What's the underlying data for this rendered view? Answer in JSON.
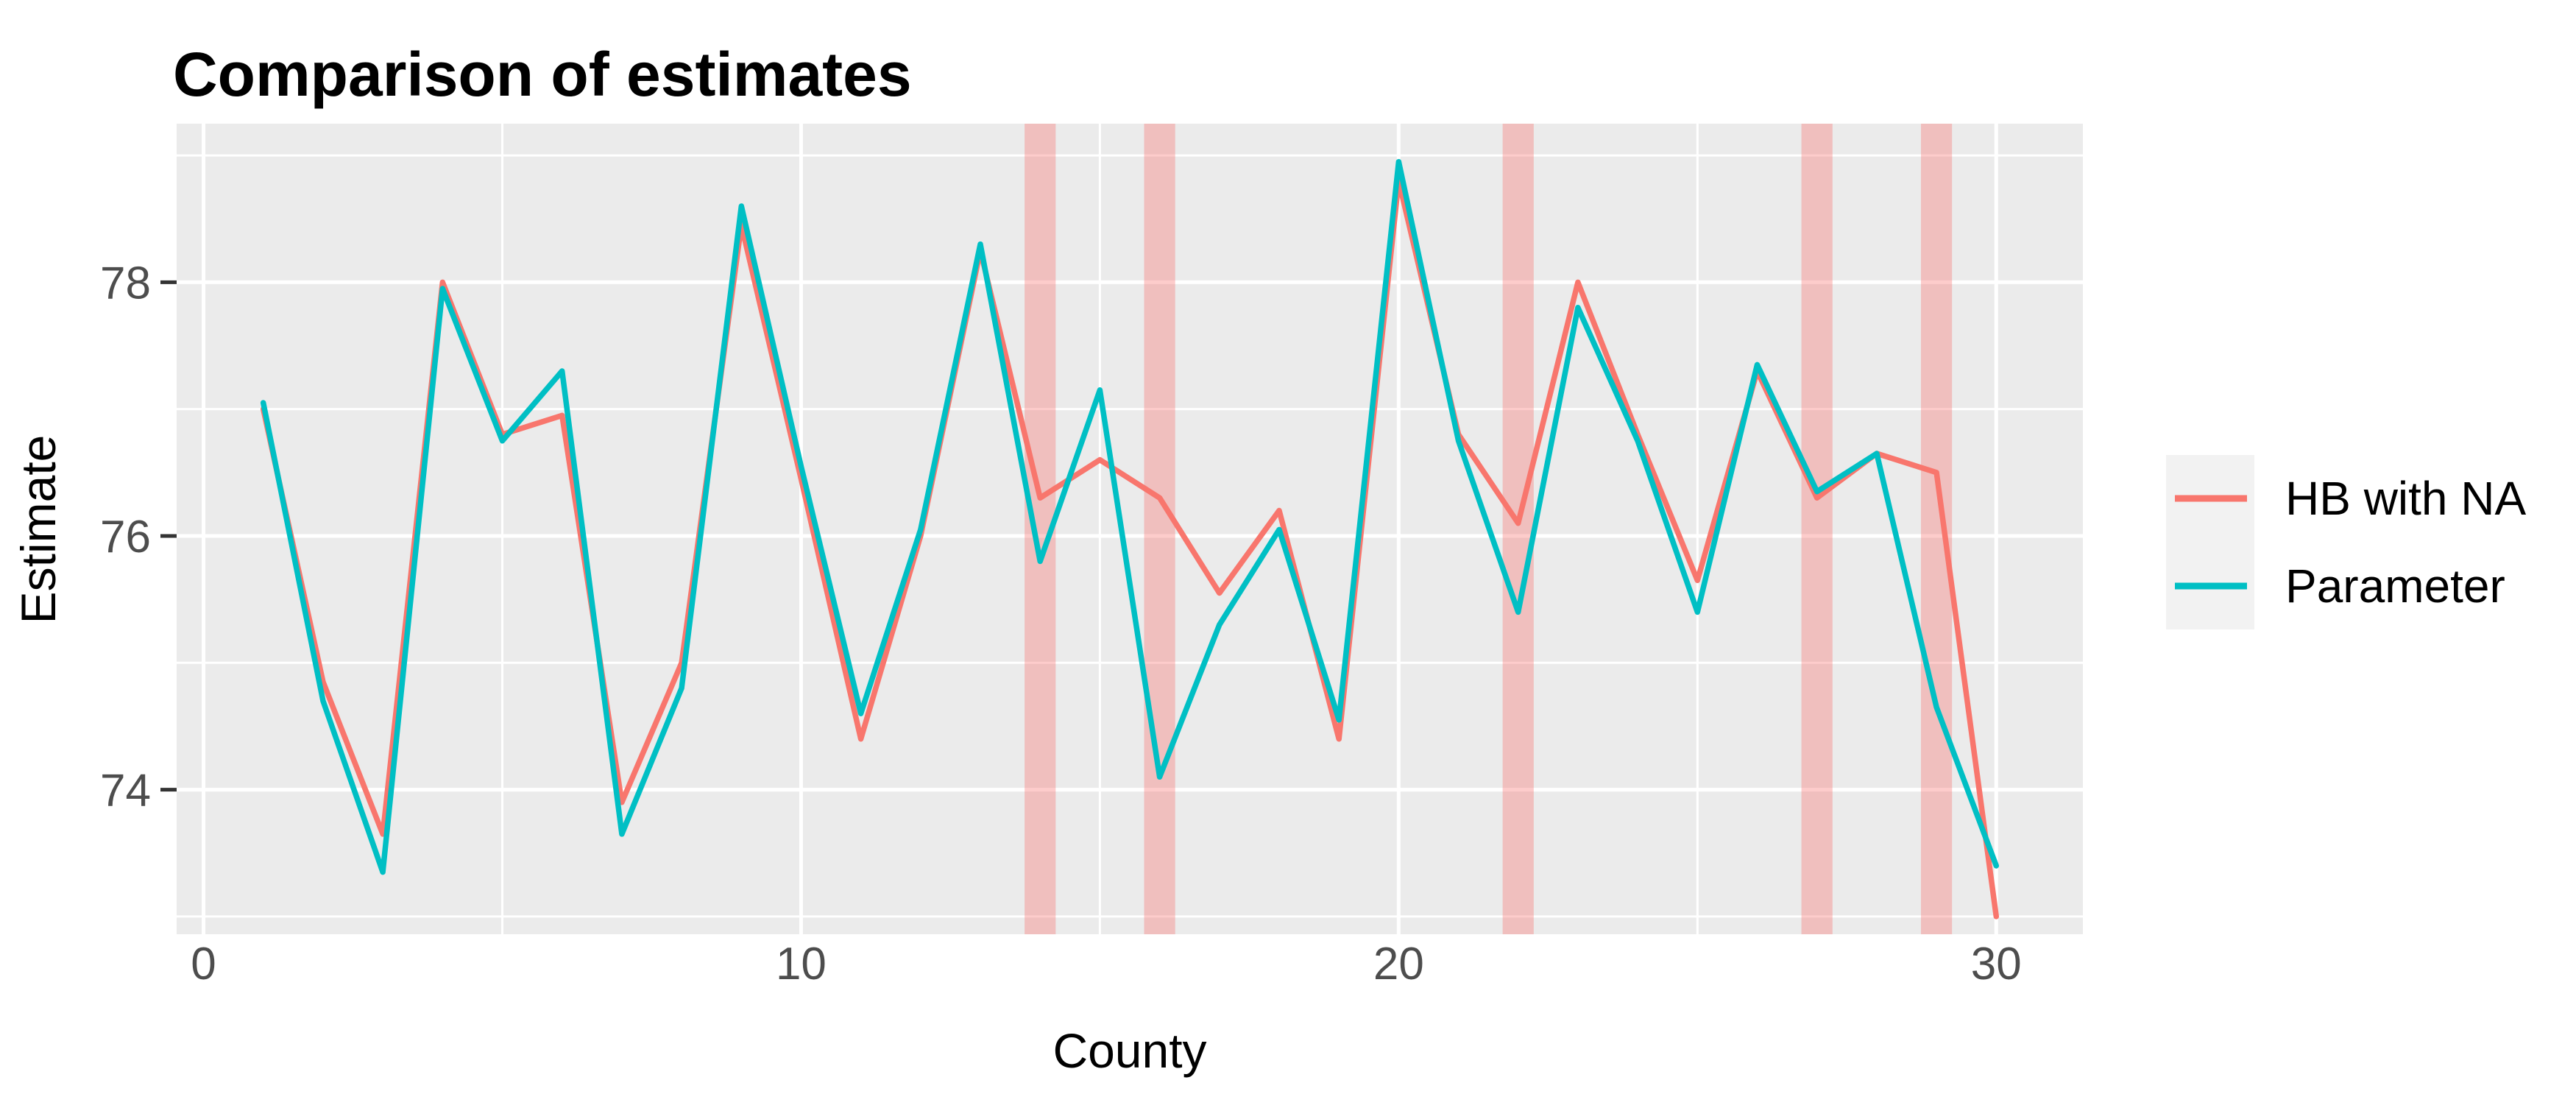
{
  "title": "Comparison of estimates",
  "chart_data": {
    "type": "line",
    "title": "Comparison of estimates",
    "xlabel": "County",
    "ylabel": "Estimate",
    "x": [
      1,
      2,
      3,
      4,
      5,
      6,
      7,
      8,
      9,
      10,
      11,
      12,
      13,
      14,
      15,
      16,
      17,
      18,
      19,
      20,
      21,
      22,
      23,
      24,
      25,
      26,
      27,
      28,
      29,
      30
    ],
    "series": [
      {
        "name": "HB with NA",
        "color": "#F8766D",
        "values": [
          77.0,
          74.85,
          73.65,
          78.0,
          76.8,
          76.95,
          73.9,
          75.0,
          78.45,
          76.45,
          74.4,
          76.0,
          78.25,
          76.3,
          76.6,
          76.3,
          75.55,
          76.2,
          74.4,
          78.8,
          76.8,
          76.1,
          78.0,
          76.8,
          75.65,
          77.3,
          76.3,
          76.65,
          76.5,
          73.0
        ]
      },
      {
        "name": "Parameter",
        "color": "#00BFC4",
        "values": [
          77.05,
          74.7,
          73.35,
          77.95,
          76.75,
          77.3,
          73.65,
          74.8,
          78.6,
          76.55,
          74.6,
          76.05,
          78.3,
          75.8,
          77.15,
          74.1,
          75.3,
          76.05,
          74.55,
          78.95,
          76.75,
          75.4,
          77.8,
          76.75,
          75.4,
          77.35,
          76.35,
          76.65,
          74.65,
          73.4
        ]
      }
    ],
    "highlighted_x": [
      14,
      16,
      22,
      27,
      29
    ],
    "highlight_halfwidth": 0.26,
    "highlight_color": "rgba(250,110,106,0.35)",
    "x_ticks": [
      0,
      10,
      20,
      30
    ],
    "x_minor": [
      5,
      15,
      25
    ],
    "y_ticks": [
      74,
      76,
      78
    ],
    "y_minor": [
      73,
      75,
      77,
      79
    ],
    "xlim": [
      -0.45,
      31.45
    ],
    "ylim": [
      72.86,
      79.25
    ],
    "grid": true,
    "legend_position": "right",
    "panel_bg": "#EBEBEB",
    "grid_color": "#FFFFFF",
    "axis_text_color": "#4D4D4D",
    "tick_mark_color": "#333333",
    "legend_key_bg": "#F2F2F2"
  },
  "legend": {
    "items": [
      {
        "label": "HB with NA"
      },
      {
        "label": "Parameter"
      }
    ]
  }
}
